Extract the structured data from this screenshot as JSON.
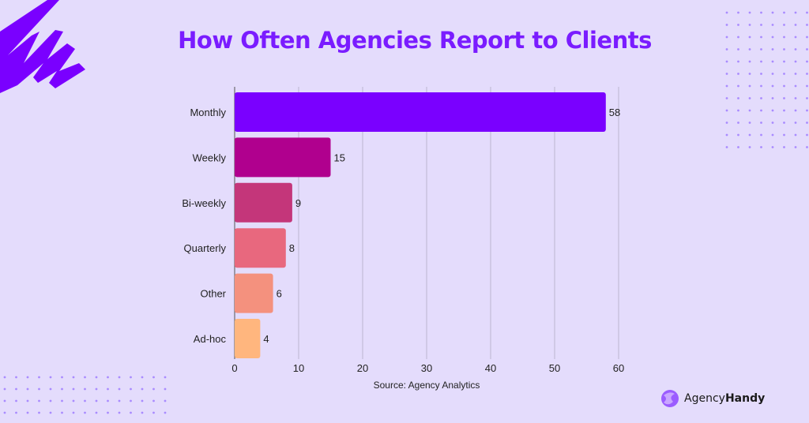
{
  "chart_data": {
    "type": "bar",
    "orientation": "horizontal",
    "title": "How Often Agencies Report to Clients",
    "categories": [
      "Monthly",
      "Weekly",
      "Bi-weekly",
      "Quarterly",
      "Other",
      "Ad-hoc"
    ],
    "values": [
      58,
      15,
      9,
      8,
      6,
      4
    ],
    "colors": [
      "#7a00ff",
      "#b0008e",
      "#c4367a",
      "#e8687e",
      "#f4917e",
      "#ffb67e"
    ],
    "xlim": [
      0,
      60
    ],
    "xticks": [
      0,
      10,
      20,
      30,
      40,
      50,
      60
    ],
    "grid": true,
    "source": "Source: Agency Analytics"
  },
  "brand": {
    "name_regular": "Agency",
    "name_bold": "Handy",
    "accent": "#7a1cff"
  },
  "background": "#e4dcfc"
}
